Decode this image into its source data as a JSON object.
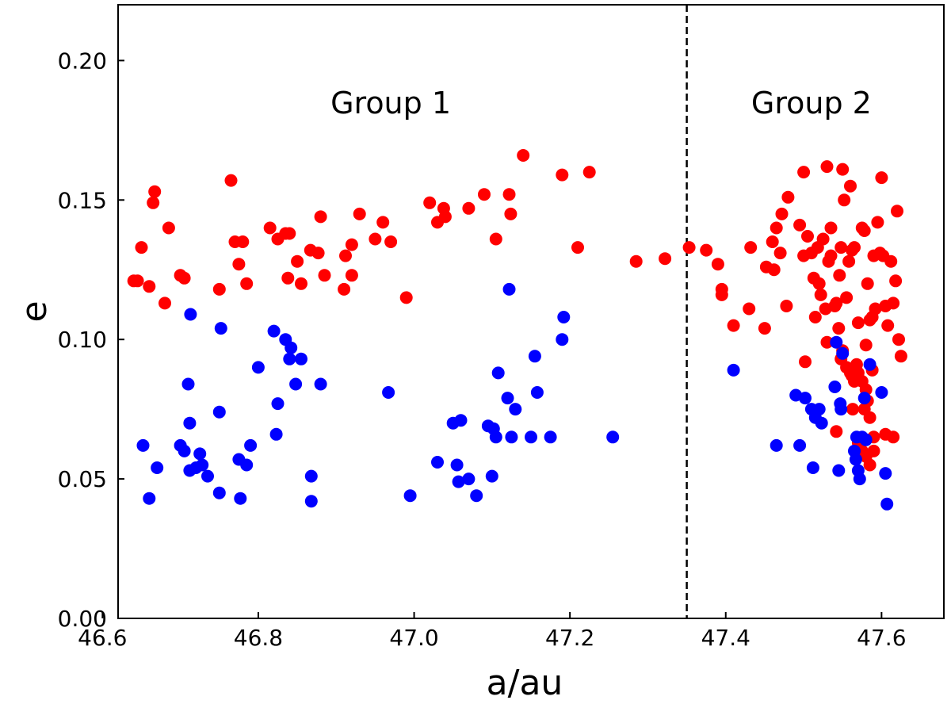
{
  "chart_data": {
    "type": "scatter",
    "title": "",
    "xlabel": "a/au",
    "ylabel": "e",
    "xlim": [
      46.62,
      47.68
    ],
    "ylim": [
      0.0,
      0.22
    ],
    "xticks": [
      46.6,
      46.8,
      47.0,
      47.2,
      47.4,
      47.6
    ],
    "xtick_labels": [
      "46.6",
      "46.8",
      "47.0",
      "47.2",
      "47.4",
      "47.6"
    ],
    "yticks": [
      0.0,
      0.05,
      0.1,
      0.15,
      0.2
    ],
    "ytick_labels": [
      "0.00",
      "0.05",
      "0.10",
      "0.15",
      "0.20"
    ],
    "grid": false,
    "divider": {
      "x": 47.35,
      "style": "dashed",
      "color": "#000000"
    },
    "annotations": [
      {
        "text": "Group 1",
        "x": 46.97,
        "y": 0.185
      },
      {
        "text": "Group 2",
        "x": 47.51,
        "y": 0.185
      }
    ],
    "series": [
      {
        "name": "red",
        "color": "#ff0000",
        "points": [
          [
            46.64,
            0.121
          ],
          [
            46.645,
            0.121
          ],
          [
            46.65,
            0.133
          ],
          [
            46.66,
            0.119
          ],
          [
            46.665,
            0.149
          ],
          [
            46.667,
            0.153
          ],
          [
            46.68,
            0.113
          ],
          [
            46.685,
            0.14
          ],
          [
            46.7,
            0.123
          ],
          [
            46.705,
            0.122
          ],
          [
            46.75,
            0.118
          ],
          [
            46.765,
            0.157
          ],
          [
            46.77,
            0.135
          ],
          [
            46.775,
            0.127
          ],
          [
            46.78,
            0.135
          ],
          [
            46.785,
            0.12
          ],
          [
            46.815,
            0.14
          ],
          [
            46.825,
            0.136
          ],
          [
            46.835,
            0.138
          ],
          [
            46.84,
            0.138
          ],
          [
            46.838,
            0.122
          ],
          [
            46.85,
            0.128
          ],
          [
            46.855,
            0.12
          ],
          [
            46.867,
            0.132
          ],
          [
            46.88,
            0.144
          ],
          [
            46.877,
            0.131
          ],
          [
            46.885,
            0.123
          ],
          [
            46.91,
            0.118
          ],
          [
            46.912,
            0.13
          ],
          [
            46.92,
            0.134
          ],
          [
            46.92,
            0.123
          ],
          [
            46.93,
            0.145
          ],
          [
            46.95,
            0.136
          ],
          [
            46.96,
            0.142
          ],
          [
            46.97,
            0.135
          ],
          [
            46.99,
            0.115
          ],
          [
            47.02,
            0.149
          ],
          [
            47.03,
            0.142
          ],
          [
            47.038,
            0.147
          ],
          [
            47.04,
            0.144
          ],
          [
            47.07,
            0.147
          ],
          [
            47.09,
            0.152
          ],
          [
            47.105,
            0.136
          ],
          [
            47.122,
            0.152
          ],
          [
            47.124,
            0.145
          ],
          [
            47.14,
            0.166
          ],
          [
            47.19,
            0.159
          ],
          [
            47.21,
            0.133
          ],
          [
            47.225,
            0.16
          ],
          [
            47.285,
            0.128
          ],
          [
            47.322,
            0.129
          ],
          [
            47.353,
            0.133
          ],
          [
            47.375,
            0.132
          ],
          [
            47.39,
            0.127
          ],
          [
            47.395,
            0.118
          ],
          [
            47.395,
            0.116
          ],
          [
            47.41,
            0.105
          ],
          [
            47.43,
            0.111
          ],
          [
            47.432,
            0.133
          ],
          [
            47.45,
            0.104
          ],
          [
            47.452,
            0.126
          ],
          [
            47.462,
            0.125
          ],
          [
            47.46,
            0.135
          ],
          [
            47.465,
            0.14
          ],
          [
            47.47,
            0.131
          ],
          [
            47.472,
            0.145
          ],
          [
            47.48,
            0.151
          ],
          [
            47.478,
            0.112
          ],
          [
            47.5,
            0.16
          ],
          [
            47.495,
            0.141
          ],
          [
            47.5,
            0.13
          ],
          [
            47.502,
            0.092
          ],
          [
            47.505,
            0.137
          ],
          [
            47.51,
            0.131
          ],
          [
            47.513,
            0.122
          ],
          [
            47.515,
            0.108
          ],
          [
            47.52,
            0.12
          ],
          [
            47.518,
            0.133
          ],
          [
            47.522,
            0.116
          ],
          [
            47.525,
            0.136
          ],
          [
            47.528,
            0.111
          ],
          [
            47.53,
            0.162
          ],
          [
            47.532,
            0.128
          ],
          [
            47.535,
            0.14
          ],
          [
            47.535,
            0.13
          ],
          [
            47.54,
            0.112
          ],
          [
            47.542,
            0.113
          ],
          [
            47.545,
            0.104
          ],
          [
            47.546,
            0.123
          ],
          [
            47.548,
            0.133
          ],
          [
            47.55,
            0.161
          ],
          [
            47.552,
            0.15
          ],
          [
            47.555,
            0.115
          ],
          [
            47.558,
            0.128
          ],
          [
            47.56,
            0.155
          ],
          [
            47.562,
            0.132
          ],
          [
            47.565,
            0.133
          ],
          [
            47.57,
            0.106
          ],
          [
            47.575,
            0.14
          ],
          [
            47.578,
            0.139
          ],
          [
            47.58,
            0.098
          ],
          [
            47.582,
            0.12
          ],
          [
            47.585,
            0.107
          ],
          [
            47.588,
            0.108
          ],
          [
            47.59,
            0.13
          ],
          [
            47.592,
            0.111
          ],
          [
            47.595,
            0.142
          ],
          [
            47.598,
            0.131
          ],
          [
            47.6,
            0.158
          ],
          [
            47.602,
            0.13
          ],
          [
            47.605,
            0.112
          ],
          [
            47.608,
            0.105
          ],
          [
            47.612,
            0.128
          ],
          [
            47.615,
            0.113
          ],
          [
            47.618,
            0.121
          ],
          [
            47.62,
            0.146
          ],
          [
            47.622,
            0.1
          ],
          [
            47.625,
            0.094
          ],
          [
            47.53,
            0.099
          ],
          [
            47.548,
            0.093
          ],
          [
            47.55,
            0.096
          ],
          [
            47.555,
            0.09
          ],
          [
            47.56,
            0.088
          ],
          [
            47.562,
            0.087
          ],
          [
            47.565,
            0.085
          ],
          [
            47.568,
            0.091
          ],
          [
            47.57,
            0.088
          ],
          [
            47.575,
            0.085
          ],
          [
            47.578,
            0.075
          ],
          [
            47.58,
            0.082
          ],
          [
            47.582,
            0.078
          ],
          [
            47.585,
            0.072
          ],
          [
            47.588,
            0.089
          ],
          [
            47.59,
            0.065
          ],
          [
            47.563,
            0.075
          ],
          [
            47.57,
            0.063
          ],
          [
            47.575,
            0.06
          ],
          [
            47.58,
            0.058
          ],
          [
            47.585,
            0.055
          ],
          [
            47.59,
            0.06
          ],
          [
            47.605,
            0.066
          ],
          [
            47.615,
            0.065
          ],
          [
            47.542,
            0.067
          ]
        ]
      },
      {
        "name": "blue",
        "color": "#0000ff",
        "points": [
          [
            46.652,
            0.062
          ],
          [
            46.66,
            0.043
          ],
          [
            46.67,
            0.054
          ],
          [
            46.7,
            0.062
          ],
          [
            46.705,
            0.06
          ],
          [
            46.71,
            0.084
          ],
          [
            46.712,
            0.07
          ],
          [
            46.713,
            0.109
          ],
          [
            46.712,
            0.053
          ],
          [
            46.72,
            0.054
          ],
          [
            46.725,
            0.059
          ],
          [
            46.728,
            0.055
          ],
          [
            46.735,
            0.051
          ],
          [
            46.75,
            0.074
          ],
          [
            46.752,
            0.104
          ],
          [
            46.75,
            0.045
          ],
          [
            46.775,
            0.057
          ],
          [
            46.777,
            0.043
          ],
          [
            46.785,
            0.055
          ],
          [
            46.79,
            0.062
          ],
          [
            46.8,
            0.09
          ],
          [
            46.82,
            0.103
          ],
          [
            46.825,
            0.077
          ],
          [
            46.823,
            0.066
          ],
          [
            46.835,
            0.1
          ],
          [
            46.84,
            0.093
          ],
          [
            46.842,
            0.097
          ],
          [
            46.848,
            0.084
          ],
          [
            46.855,
            0.093
          ],
          [
            46.868,
            0.051
          ],
          [
            46.868,
            0.042
          ],
          [
            46.88,
            0.084
          ],
          [
            46.967,
            0.081
          ],
          [
            46.995,
            0.044
          ],
          [
            47.03,
            0.056
          ],
          [
            47.05,
            0.07
          ],
          [
            47.055,
            0.055
          ],
          [
            47.057,
            0.049
          ],
          [
            47.06,
            0.071
          ],
          [
            47.07,
            0.05
          ],
          [
            47.08,
            0.044
          ],
          [
            47.095,
            0.069
          ],
          [
            47.1,
            0.051
          ],
          [
            47.102,
            0.068
          ],
          [
            47.105,
            0.065
          ],
          [
            47.108,
            0.088
          ],
          [
            47.12,
            0.079
          ],
          [
            47.122,
            0.118
          ],
          [
            47.125,
            0.065
          ],
          [
            47.13,
            0.075
          ],
          [
            47.15,
            0.065
          ],
          [
            47.155,
            0.094
          ],
          [
            47.158,
            0.081
          ],
          [
            47.175,
            0.065
          ],
          [
            47.19,
            0.1
          ],
          [
            47.192,
            0.108
          ],
          [
            47.255,
            0.065
          ],
          [
            47.41,
            0.089
          ],
          [
            47.465,
            0.062
          ],
          [
            47.49,
            0.08
          ],
          [
            47.495,
            0.062
          ],
          [
            47.502,
            0.079
          ],
          [
            47.51,
            0.075
          ],
          [
            47.512,
            0.054
          ],
          [
            47.515,
            0.072
          ],
          [
            47.52,
            0.075
          ],
          [
            47.523,
            0.07
          ],
          [
            47.54,
            0.083
          ],
          [
            47.542,
            0.099
          ],
          [
            47.545,
            0.053
          ],
          [
            47.547,
            0.077
          ],
          [
            47.548,
            0.075
          ],
          [
            47.55,
            0.095
          ],
          [
            47.565,
            0.06
          ],
          [
            47.567,
            0.057
          ],
          [
            47.568,
            0.065
          ],
          [
            47.57,
            0.053
          ],
          [
            47.572,
            0.05
          ],
          [
            47.575,
            0.065
          ],
          [
            47.578,
            0.079
          ],
          [
            47.58,
            0.064
          ],
          [
            47.585,
            0.091
          ],
          [
            47.6,
            0.081
          ],
          [
            47.605,
            0.052
          ],
          [
            47.607,
            0.041
          ]
        ]
      }
    ]
  }
}
